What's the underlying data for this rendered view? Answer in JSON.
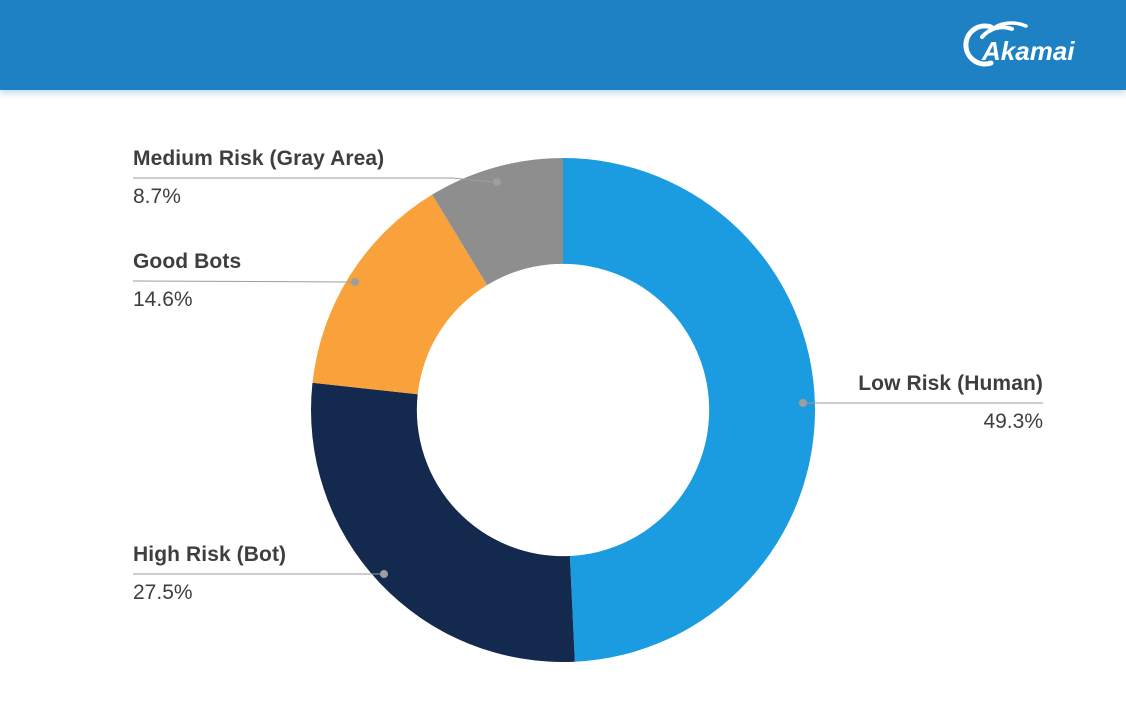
{
  "header": {
    "bg_color": "#1E81C4",
    "logo_text": "Akamai"
  },
  "chart_data": {
    "type": "pie",
    "subtype": "donut",
    "direction": "clockwise",
    "start_angle_deg": -90,
    "inner_radius_ratio": 0.58,
    "legend_position": "none",
    "label_color": "#3E3E3E",
    "leader_line_color": "#9E9E9E",
    "segments": [
      {
        "label": "Low Risk (Human)",
        "value": 49.3,
        "display": "49.3%",
        "color": "#1B9CE0"
      },
      {
        "label": "High Risk (Bot)",
        "value": 27.5,
        "display": "27.5%",
        "color": "#132A4E"
      },
      {
        "label": "Good Bots",
        "value": 14.6,
        "display": "14.6%",
        "color": "#F9A23C"
      },
      {
        "label": "Medium Risk (Gray Area)",
        "value": 8.7,
        "display": "8.7%",
        "color": "#8E8E8E"
      }
    ]
  }
}
